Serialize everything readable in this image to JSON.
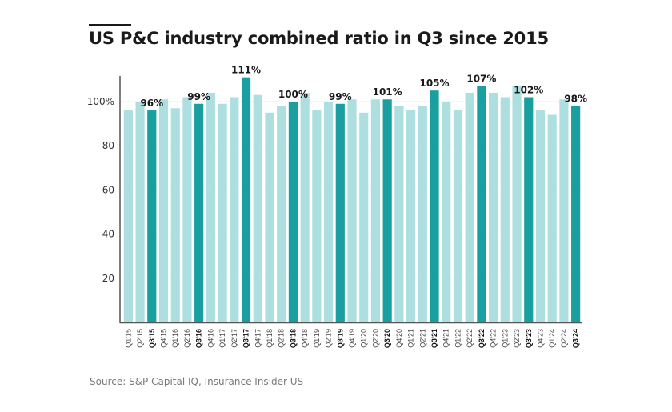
{
  "chart_data": {
    "type": "bar",
    "title": "US P&C industry combined ratio in Q3 since 2015",
    "source": "Source: S&P Capital IQ, Insurance Insider US",
    "xlabel": "",
    "ylabel": "",
    "ylim": [
      0,
      112
    ],
    "yticks": [
      {
        "value": 20,
        "label": "20"
      },
      {
        "value": 40,
        "label": "40"
      },
      {
        "value": 60,
        "label": "60"
      },
      {
        "value": 80,
        "label": "80"
      },
      {
        "value": 100,
        "label": "100%"
      }
    ],
    "grid": true,
    "colors": {
      "regular": "#aedfe0",
      "highlight": "#1a9fa0",
      "axis": "#555555",
      "grid": "#ececec"
    },
    "categories": [
      "Q1'15",
      "Q2'15",
      "Q3'15",
      "Q4'15",
      "Q1'16",
      "Q2'16",
      "Q3'16",
      "Q4'16",
      "Q1'17",
      "Q2'17",
      "Q3'17",
      "Q4'17",
      "Q1'18",
      "Q2'18",
      "Q3'18",
      "Q4'18",
      "Q1'19",
      "Q2'19",
      "Q3'19",
      "Q4'19",
      "Q1'20",
      "Q2'20",
      "Q3'20",
      "Q4'20",
      "Q1'21",
      "Q2'21",
      "Q3'21",
      "Q4'21",
      "Q1'22",
      "Q2'22",
      "Q3'22",
      "Q4'22",
      "Q1'23",
      "Q2'23",
      "Q3'23",
      "Q4'23",
      "Q1'24",
      "Q2'24",
      "Q3'24"
    ],
    "values": [
      96,
      100,
      96,
      101,
      97,
      102,
      99,
      104,
      99,
      102,
      111,
      103,
      95,
      98,
      100,
      104,
      96,
      100,
      99,
      101,
      95,
      101,
      101,
      98,
      96,
      98,
      105,
      100,
      96,
      104,
      107,
      104,
      102,
      107,
      102,
      96,
      94,
      101,
      98
    ],
    "highlighted": [
      "Q3'15",
      "Q3'16",
      "Q3'17",
      "Q3'18",
      "Q3'19",
      "Q3'20",
      "Q3'21",
      "Q3'22",
      "Q3'23",
      "Q3'24"
    ],
    "data_labels": {
      "Q3'15": "96%",
      "Q3'16": "99%",
      "Q3'17": "111%",
      "Q3'18": "100%",
      "Q3'19": "99%",
      "Q3'20": "101%",
      "Q3'21": "105%",
      "Q3'22": "107%",
      "Q3'23": "102%",
      "Q3'24": "98%"
    }
  }
}
